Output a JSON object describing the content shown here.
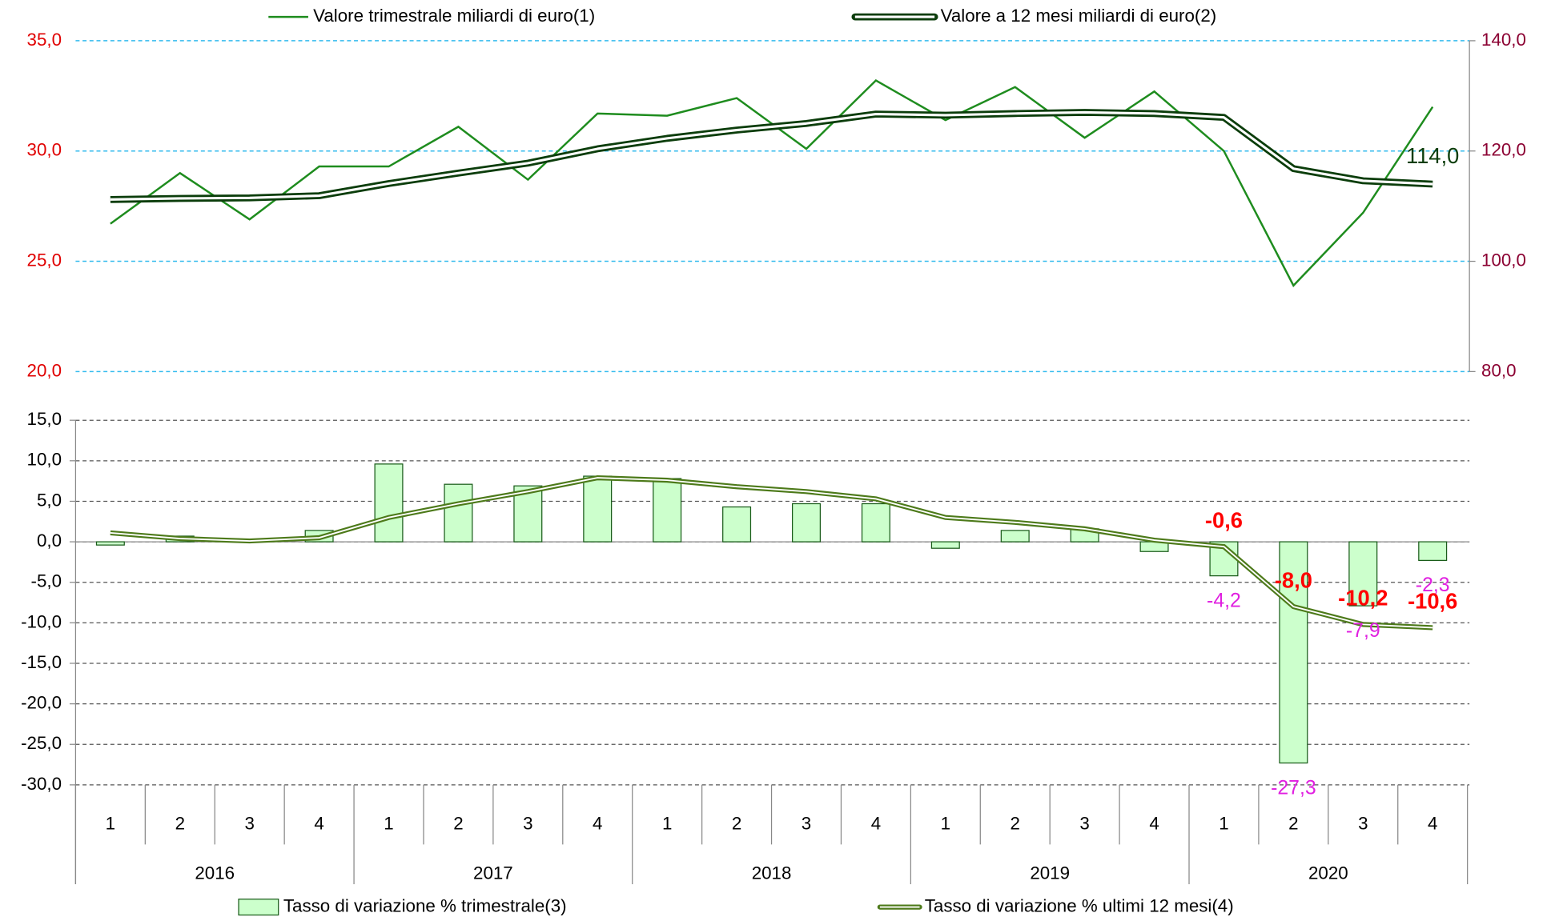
{
  "chart_data": [
    {
      "type": "line",
      "series": [
        {
          "name": "Valore trimestrale miliardi di euro(1)",
          "color": "#1e8c1e",
          "values": [
            26.7,
            29.0,
            26.9,
            29.3,
            29.3,
            31.1,
            28.7,
            31.7,
            31.6,
            32.4,
            30.1,
            33.2,
            31.4,
            32.9,
            30.6,
            32.7,
            30.0,
            23.9,
            27.2,
            32.0
          ]
        },
        {
          "name": "Valore a 12 mesi miliardi di euro(2)",
          "color": "#0b3d0b",
          "axis": "y2",
          "values": [
            111.2,
            111.4,
            111.5,
            111.9,
            114.1,
            116.0,
            117.8,
            120.4,
            122.3,
            123.8,
            125.0,
            126.7,
            126.5,
            126.8,
            127.0,
            126.8,
            126.1,
            116.8,
            114.6,
            114.0
          ],
          "value_labels": [
            null,
            null,
            null,
            null,
            null,
            null,
            null,
            null,
            null,
            null,
            null,
            null,
            null,
            null,
            null,
            null,
            null,
            null,
            null,
            "114,0"
          ]
        }
      ],
      "ylim": [
        20,
        35
      ],
      "yticks": [
        {
          "value": 20,
          "label": "20,0"
        },
        {
          "value": 25,
          "label": "25,0"
        },
        {
          "value": 30,
          "label": "30,0"
        },
        {
          "value": 35,
          "label": "35,0"
        }
      ],
      "y2lim": [
        80,
        140
      ],
      "y2ticks": [
        {
          "value": 80,
          "label": "80,0"
        },
        {
          "value": 100,
          "label": "100,0"
        },
        {
          "value": 120,
          "label": "120,0"
        },
        {
          "value": 140,
          "label": "140,0"
        }
      ],
      "grid": true
    },
    {
      "type": "bar",
      "categories": [
        "1",
        "2",
        "3",
        "4",
        "1",
        "2",
        "3",
        "4",
        "1",
        "2",
        "3",
        "4",
        "1",
        "2",
        "3",
        "4",
        "1",
        "2",
        "3",
        "4"
      ],
      "years": [
        "2016",
        "2017",
        "2018",
        "2019",
        "2020"
      ],
      "series": [
        {
          "name": "Tasso di variazione % trimestrale(3)",
          "type": "bar",
          "color": "#ccffcc",
          "values": [
            -0.4,
            0.7,
            0.2,
            1.4,
            9.6,
            7.1,
            6.9,
            8.1,
            7.8,
            4.3,
            4.7,
            4.7,
            -0.8,
            1.4,
            1.6,
            -1.2,
            -4.2,
            -27.3,
            -7.9,
            -2.3
          ],
          "value_labels": [
            null,
            null,
            null,
            null,
            null,
            null,
            null,
            null,
            null,
            null,
            null,
            null,
            null,
            null,
            null,
            null,
            "-4,2",
            "-27,3",
            "-7,9",
            "-2,3"
          ]
        },
        {
          "name": "Tasso di variazione % ultimi 12 mesi(4)",
          "type": "line",
          "color": "#4d7a1a",
          "values": [
            1.1,
            0.4,
            0.1,
            0.5,
            3.0,
            4.7,
            6.2,
            7.9,
            7.6,
            6.8,
            6.2,
            5.3,
            3.0,
            2.4,
            1.6,
            0.2,
            -0.6,
            -8.0,
            -10.2,
            -10.6
          ],
          "value_labels": [
            null,
            null,
            null,
            null,
            null,
            null,
            null,
            null,
            null,
            null,
            null,
            null,
            null,
            null,
            null,
            null,
            "-0,6",
            "-8,0",
            "-10,2",
            "-10,6"
          ]
        }
      ],
      "ylim": [
        -30,
        15
      ],
      "yticks": [
        {
          "value": -30,
          "label": "-30,0"
        },
        {
          "value": -25,
          "label": "-25,0"
        },
        {
          "value": -20,
          "label": "-20,0"
        },
        {
          "value": -15,
          "label": "-15,0"
        },
        {
          "value": -10,
          "label": "-10,0"
        },
        {
          "value": -5,
          "label": "-5,0"
        },
        {
          "value": 0,
          "label": "0,0"
        },
        {
          "value": 5,
          "label": "5,0"
        },
        {
          "value": 10,
          "label": "10,0"
        },
        {
          "value": 15,
          "label": "15,0"
        }
      ],
      "grid": true
    }
  ]
}
